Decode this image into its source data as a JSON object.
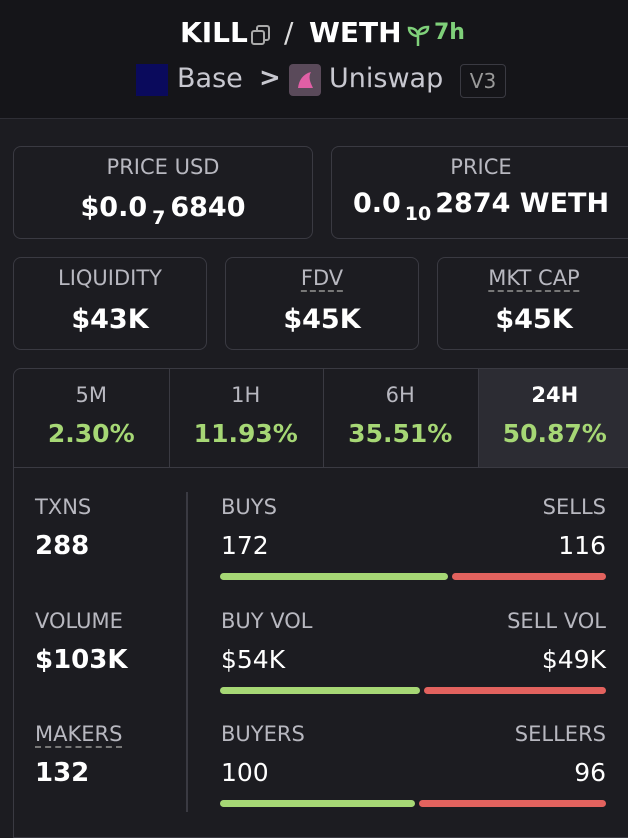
{
  "header": {
    "base_token": "KILL",
    "separator": "/",
    "quote_token": "WETH",
    "age": "7h",
    "chain": "Base",
    "chevron": ">",
    "dex": "Uniswap",
    "version": "V3"
  },
  "prices": {
    "usd_label": "PRICE USD",
    "usd_prefix": "$0.0",
    "usd_zeros": "7",
    "usd_digits": "6840",
    "native_label": "PRICE",
    "native_prefix": "0.0",
    "native_zeros": "10",
    "native_digits": "2874 WETH"
  },
  "stats": [
    {
      "label": "LIQUIDITY",
      "value": "$43K"
    },
    {
      "label": "FDV",
      "value": "$45K"
    },
    {
      "label": "MKT CAP",
      "value": "$45K"
    }
  ],
  "tabs": [
    {
      "label": "5M",
      "change": "2.30%"
    },
    {
      "label": "1H",
      "change": "11.93%"
    },
    {
      "label": "6H",
      "change": "35.51%"
    },
    {
      "label": "24H",
      "change": "50.87%"
    }
  ],
  "totals": [
    {
      "label": "TXNS",
      "value": "288"
    },
    {
      "label": "VOLUME",
      "value": "$103K"
    },
    {
      "label": "MAKERS",
      "value": "132"
    }
  ],
  "rows": [
    {
      "buy_label": "BUYS",
      "buy": 172,
      "sell_label": "SELLS",
      "sell": 116
    },
    {
      "buy_label": "BUY VOL",
      "buy": 54000,
      "buy_text": "$54K",
      "sell_label": "SELL VOL",
      "sell": 49000,
      "sell_text": "$49K"
    },
    {
      "buy_label": "BUYERS",
      "buy": 100,
      "sell_label": "SELLERS",
      "sell": 96
    }
  ]
}
